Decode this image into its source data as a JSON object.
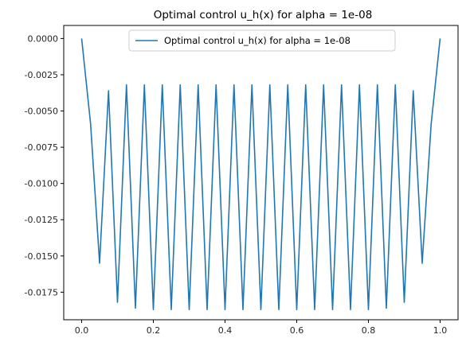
{
  "chart_data": {
    "type": "line",
    "title": "Optimal control u_h(x) for alpha = 1e-08",
    "xlabel": "",
    "ylabel": "",
    "xlim": [
      -0.05,
      1.05
    ],
    "ylim": [
      -0.0194,
      0.0009
    ],
    "xticks": [
      0.0,
      0.2,
      0.4,
      0.6,
      0.8,
      1.0
    ],
    "xtick_labels": [
      "0.0",
      "0.2",
      "0.4",
      "0.6",
      "0.8",
      "1.0"
    ],
    "yticks": [
      0.0,
      -0.0025,
      -0.005,
      -0.0075,
      -0.01,
      -0.0125,
      -0.015,
      -0.0175
    ],
    "ytick_labels": [
      "0.0000",
      "-0.0025",
      "-0.0050",
      "-0.0075",
      "-0.0100",
      "-0.0125",
      "-0.0150",
      "-0.0175"
    ],
    "grid": false,
    "legend": "upper center",
    "series": [
      {
        "name": "Optimal control u_h(x) for alpha = 1e-08",
        "color": "#1f77b4",
        "x": [
          0.0,
          0.025,
          0.05,
          0.075,
          0.1,
          0.125,
          0.15,
          0.175,
          0.2,
          0.225,
          0.25,
          0.275,
          0.3,
          0.325,
          0.35,
          0.375,
          0.4,
          0.425,
          0.45,
          0.475,
          0.5,
          0.525,
          0.55,
          0.575,
          0.6,
          0.625,
          0.65,
          0.675,
          0.7,
          0.725,
          0.75,
          0.775,
          0.8,
          0.825,
          0.85,
          0.875,
          0.9,
          0.925,
          0.95,
          0.975,
          1.0
        ],
        "y": [
          0.0,
          -0.0059,
          -0.0155,
          -0.0036,
          -0.0182,
          -0.0032,
          -0.0186,
          -0.0032,
          -0.0187,
          -0.0032,
          -0.0187,
          -0.0032,
          -0.0187,
          -0.0032,
          -0.0187,
          -0.0032,
          -0.0187,
          -0.0032,
          -0.0187,
          -0.0032,
          -0.0187,
          -0.0032,
          -0.0187,
          -0.0032,
          -0.0187,
          -0.0032,
          -0.0187,
          -0.0032,
          -0.0187,
          -0.0032,
          -0.0187,
          -0.0032,
          -0.0187,
          -0.0032,
          -0.0186,
          -0.0032,
          -0.0182,
          -0.0036,
          -0.0155,
          -0.0059,
          0.0
        ]
      }
    ]
  }
}
